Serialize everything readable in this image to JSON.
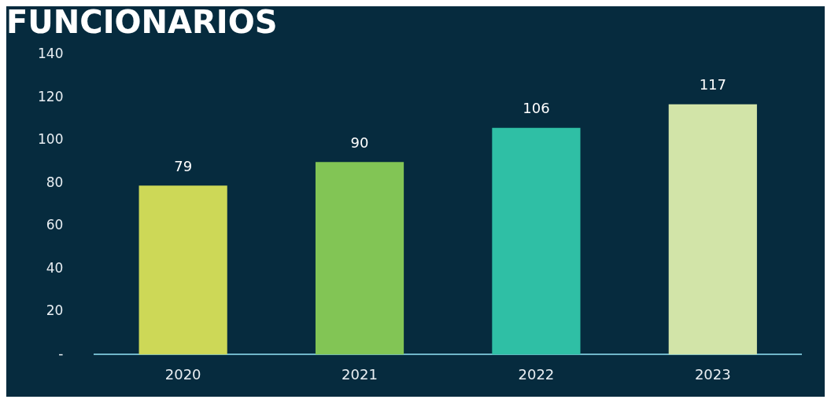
{
  "chart_data": {
    "type": "bar",
    "title": "FUNCIONARIOS",
    "categories": [
      "2020",
      "2021",
      "2022",
      "2023"
    ],
    "values": [
      79,
      90,
      106,
      117
    ],
    "colors": [
      "#cdd857",
      "#82c555",
      "#2fbfa5",
      "#d2e4a8"
    ],
    "ylim": [
      0,
      140
    ],
    "yticks": [
      {
        "value": 0,
        "label": "-"
      },
      20,
      40,
      60,
      80,
      100,
      120,
      140
    ],
    "data_labels": true,
    "grid": false,
    "legend": false
  }
}
